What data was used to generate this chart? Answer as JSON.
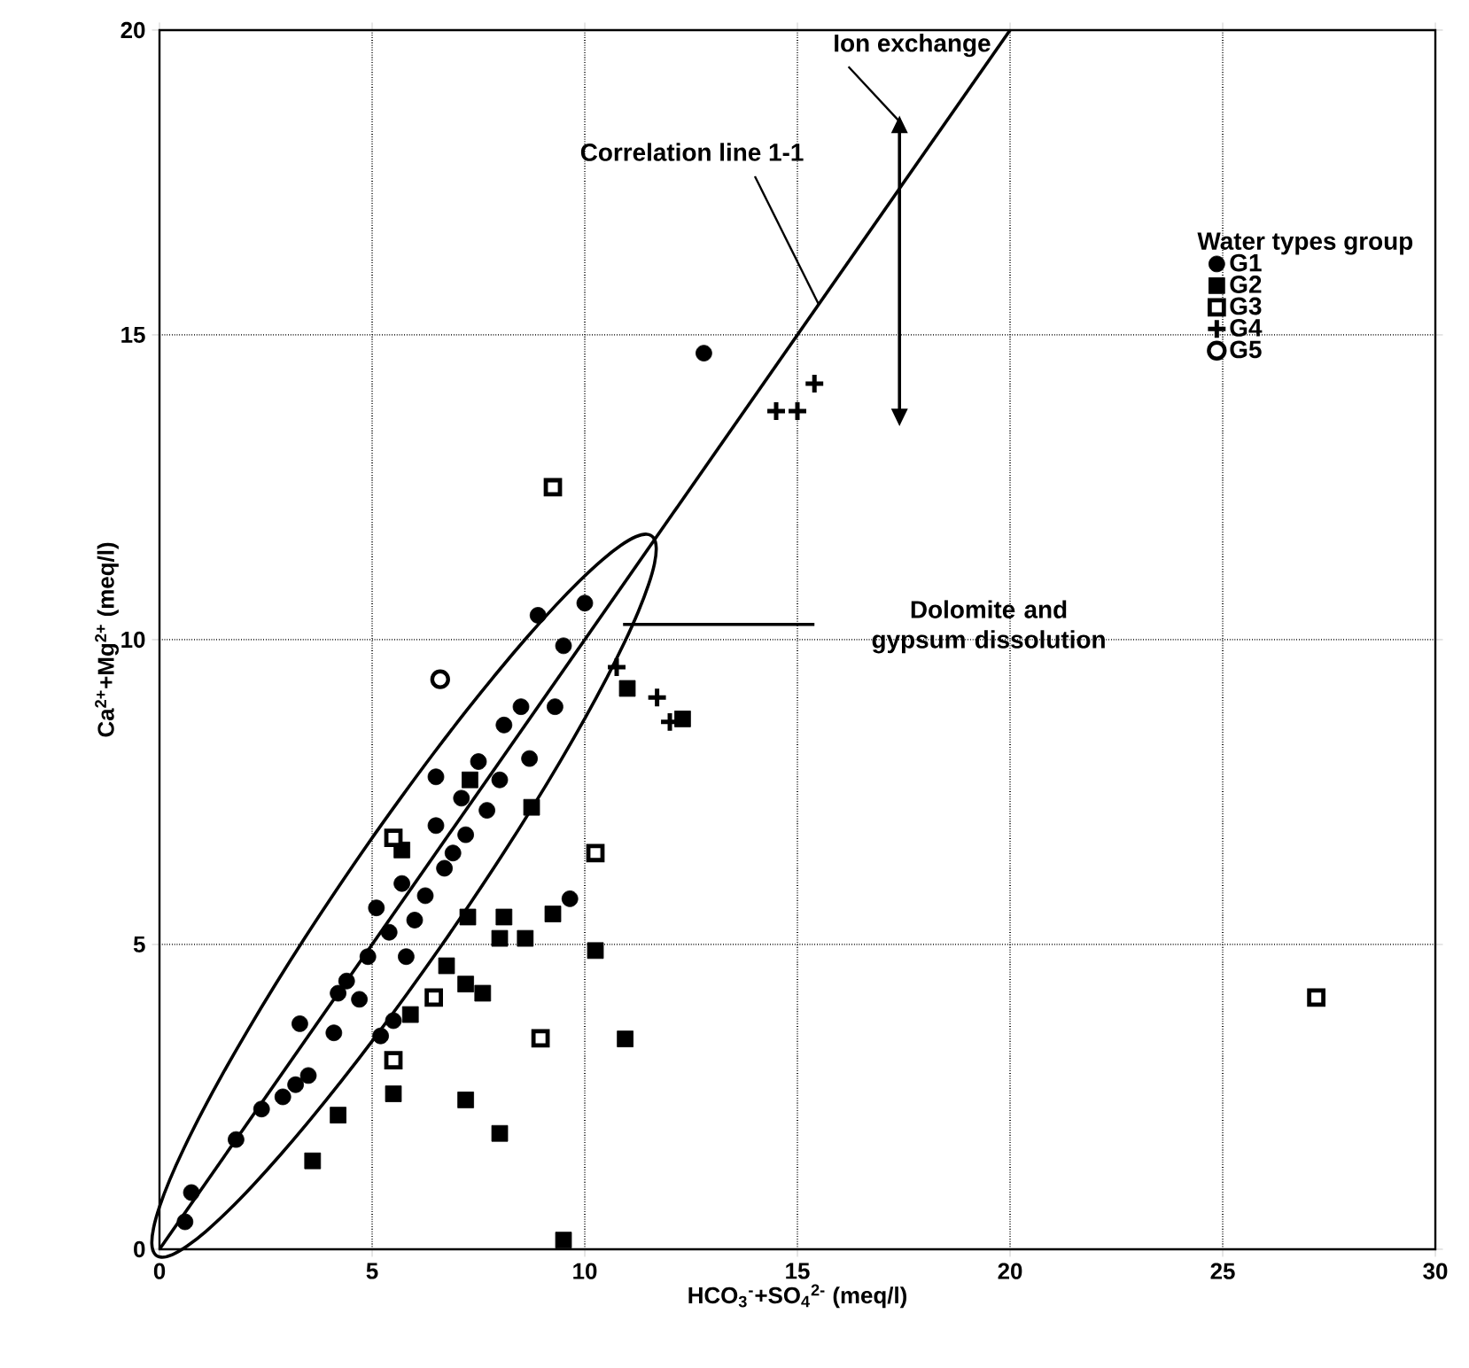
{
  "chart_data": {
    "type": "scatter",
    "xlabel": "HCO$_{3}$$^{-}$+SO$_{4}$$^{2-}$ (meq/l)",
    "ylabel": "Ca$^{2+}$+Mg$^{2+}$ (meq/l)",
    "legend_title": "Water types group",
    "legend": "top right",
    "grid": true,
    "xlim": [
      0,
      30
    ],
    "ylim": [
      0,
      20
    ],
    "xticks": [
      0,
      5,
      10,
      15,
      20,
      25,
      30
    ],
    "yticks": [
      0,
      5,
      10,
      15,
      20
    ],
    "annotations": [
      "Ion exchange",
      {
        "text": "Correlation line 1-1",
        "x": 15.5,
        "y": 15.5
      },
      "Dolomite and gypsum dissolution"
    ],
    "series": [
      {
        "name": "G1",
        "color": "#000000",
        "marker": "circle",
        "x": [
          0.75,
          0.6,
          1.8,
          2.4,
          2.9,
          3.2,
          3.5,
          3.3,
          4.1,
          4.2,
          4.4,
          4.7,
          4.9,
          5.1,
          5.2,
          5.5,
          5.4,
          5.7,
          5.8,
          6.0,
          6.25,
          6.5,
          6.5,
          6.7,
          6.9,
          7.1,
          7.2,
          7.5,
          7.7,
          8.0,
          8.1,
          8.5,
          8.7,
          8.9,
          9.3,
          10.0,
          9.5,
          9.65,
          12.8
        ],
        "values": [
          0.93,
          0.45,
          1.8,
          2.3,
          2.5,
          2.7,
          2.85,
          3.7,
          3.55,
          4.2,
          4.4,
          4.1,
          4.8,
          5.6,
          3.5,
          3.75,
          5.2,
          6.0,
          4.8,
          5.4,
          5.8,
          6.95,
          7.75,
          6.25,
          6.5,
          7.4,
          6.8,
          8.0,
          7.2,
          7.7,
          8.6,
          8.9,
          8.05,
          10.4,
          8.9,
          10.6,
          9.9,
          5.75,
          14.7
        ]
      },
      {
        "name": "G2",
        "color": "#000000",
        "marker": "square",
        "x": [
          3.6,
          4.2,
          5.5,
          7.2,
          8.0,
          9.5,
          10.95,
          10.25,
          9.25,
          8.6,
          8.0,
          7.6,
          7.2,
          6.45,
          5.9,
          6.75,
          7.25,
          8.1,
          11.0,
          12.3,
          5.7,
          7.3,
          8.75
        ],
        "values": [
          1.45,
          2.2,
          2.55,
          2.45,
          1.9,
          0.15,
          3.45,
          4.9,
          5.5,
          5.1,
          5.1,
          4.2,
          4.35,
          null,
          3.85,
          4.65,
          5.45,
          5.45,
          9.2,
          8.7,
          6.55,
          7.7,
          7.25
        ]
      },
      {
        "name": "G3",
        "color": "#000000",
        "marker": "square",
        "x": [
          9.25,
          5.5,
          5.5,
          8.96,
          10.25,
          6.45,
          27.2
        ],
        "values": [
          12.5,
          6.75,
          3.1,
          3.46,
          6.5,
          4.13,
          4.13
        ]
      },
      {
        "name": "G4",
        "color": "#000000",
        "marker": "cross",
        "x": [
          14.5,
          15.0,
          15.4,
          10.75,
          11.7,
          12.0
        ],
        "values": [
          13.75,
          13.75,
          14.2,
          9.55,
          9.05,
          8.65
        ]
      },
      {
        "name": "G5",
        "color": "#000000",
        "marker": "circle",
        "x": [
          6.6
        ],
        "values": [
          9.35
        ]
      },
      {
        "type": "line",
        "color": "#000000",
        "x": [
          0,
          20
        ],
        "values": [
          0,
          20
        ]
      }
    ]
  }
}
